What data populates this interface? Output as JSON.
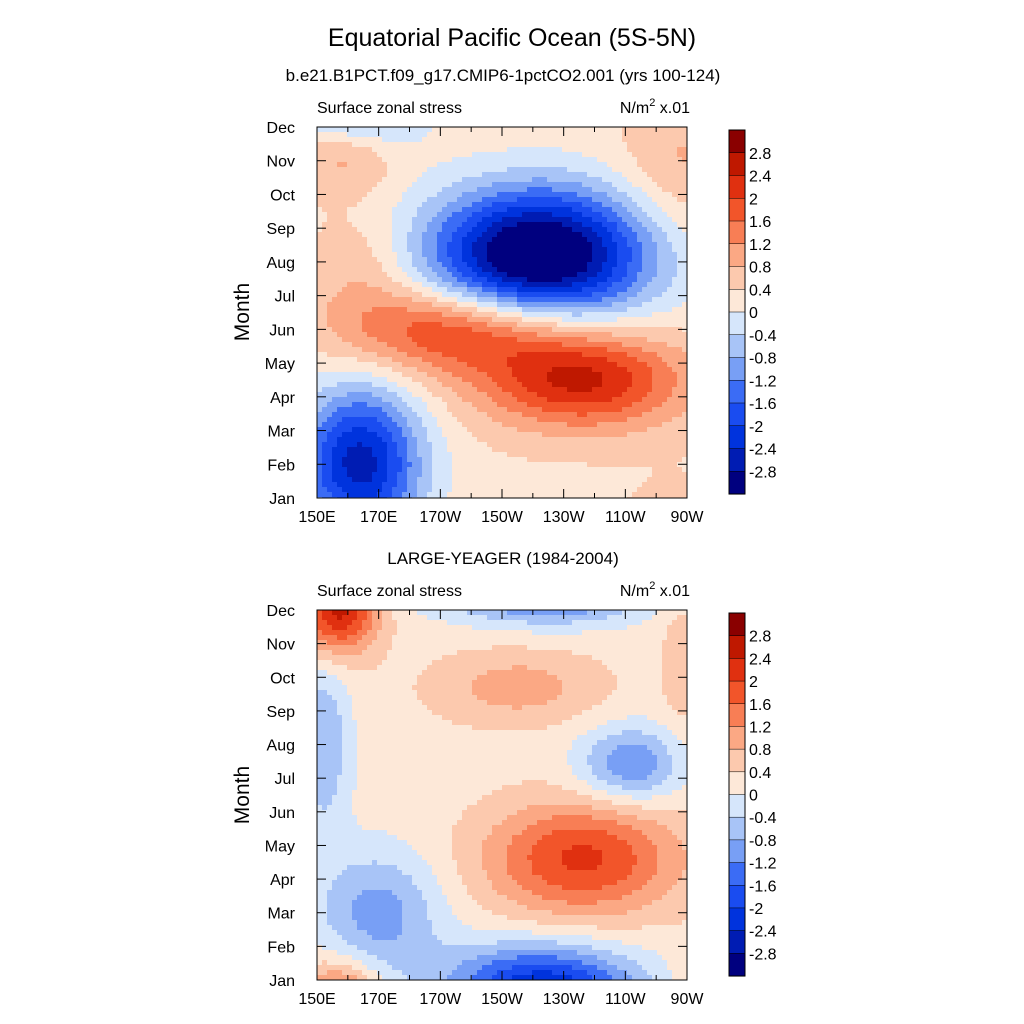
{
  "figure": {
    "title": "Equatorial Pacific Ocean (5S-5N)"
  },
  "colorbar": {
    "levels": [
      -2.8,
      -2.4,
      -2,
      -1.6,
      -1.2,
      -0.8,
      -0.4,
      0,
      0.4,
      0.8,
      1.2,
      1.6,
      2,
      2.4,
      2.8
    ],
    "labels": [
      "2.8",
      "2.4",
      "2",
      "1.6",
      "1.2",
      "0.8",
      "0.4",
      "0",
      "-0.4",
      "-0.8",
      "-1.2",
      "-1.6",
      "-2",
      "-2.4",
      "-2.8"
    ],
    "colors": [
      "#00007f",
      "#001cb3",
      "#0033dd",
      "#1a4cf0",
      "#3b6cf5",
      "#789ff5",
      "#a8c4f7",
      "#d6e6fb",
      "#fde8d8",
      "#fcc9ae",
      "#fba884",
      "#f87e55",
      "#f2552a",
      "#e03010",
      "#bf1800",
      "#8a0000"
    ]
  },
  "chart_data": [
    {
      "type": "heatmap",
      "title": "b.e21.B1PCT.f09_g17.CMIP6-1pctCO2.001 (yrs 100-124)",
      "left_string": "Surface zonal stress",
      "right_string_pre": "N/m",
      "right_string_sup": "2",
      "right_string_post": " x.01",
      "ylabel": "Month",
      "xlabel": "",
      "x_ticks": [
        "150E",
        "170E",
        "170W",
        "150W",
        "130W",
        "110W",
        "90W"
      ],
      "x_values": [
        150,
        170,
        190,
        210,
        230,
        250,
        270
      ],
      "xlim": [
        150,
        270
      ],
      "y_ticks": [
        "Jan",
        "Feb",
        "Mar",
        "Apr",
        "May",
        "Jun",
        "Jul",
        "Aug",
        "Sep",
        "Oct",
        "Nov",
        "Dec"
      ],
      "features": [
        {
          "lon": 164,
          "month": 1.0,
          "amp": -2.9,
          "slon": 14,
          "smon": 1.6
        },
        {
          "lon": 222,
          "month": 7.2,
          "amp": -4.0,
          "slon": 25,
          "smon": 1.4
        },
        {
          "lon": 236,
          "month": 3.5,
          "amp": 2.2,
          "slon": 23,
          "smon": 1.0
        },
        {
          "lon": 196,
          "month": 5.0,
          "amp": 1.9,
          "slon": 26,
          "smon": 0.9
        },
        {
          "lon": 160,
          "month": 10.2,
          "amp": 1.0,
          "slon": 12,
          "smon": 0.8
        },
        {
          "lon": 268,
          "month": 9.8,
          "amp": 0.6,
          "slon": 14,
          "smon": 1.5
        },
        {
          "lon": 165,
          "month": 6.8,
          "amp": 0.5,
          "slon": 12,
          "smon": 1.2
        }
      ],
      "baseline": 0.3
    },
    {
      "type": "heatmap",
      "title": "LARGE-YEAGER (1984-2004)",
      "left_string": "Surface zonal stress",
      "right_string_pre": "N/m",
      "right_string_sup": "2",
      "right_string_post": " x.01",
      "ylabel": "Month",
      "xlabel": "",
      "x_ticks": [
        "150E",
        "170E",
        "170W",
        "150W",
        "130W",
        "110W",
        "90W"
      ],
      "x_values": [
        150,
        170,
        190,
        210,
        230,
        250,
        270
      ],
      "xlim": [
        150,
        270
      ],
      "y_ticks": [
        "Jan",
        "Feb",
        "Mar",
        "Apr",
        "May",
        "Jun",
        "Jul",
        "Aug",
        "Sep",
        "Oct",
        "Nov",
        "Dec"
      ],
      "features": [
        {
          "lon": 157,
          "month": 11.0,
          "amp": 2.4,
          "slon": 9,
          "smon": 0.9
        },
        {
          "lon": 236,
          "month": 3.6,
          "amp": 1.9,
          "slon": 22,
          "smon": 1.2
        },
        {
          "lon": 215,
          "month": 8.7,
          "amp": 0.8,
          "slon": 20,
          "smon": 0.8
        },
        {
          "lon": 252,
          "month": 6.4,
          "amp": -1.4,
          "slon": 12,
          "smon": 0.8
        },
        {
          "lon": 222,
          "month": 0.1,
          "amp": -1.8,
          "slon": 22,
          "smon": 0.8
        },
        {
          "lon": 226,
          "month": 11.5,
          "amp": -1.0,
          "slon": 20,
          "smon": 0.6
        },
        {
          "lon": 170,
          "month": 2.0,
          "amp": -1.2,
          "slon": 14,
          "smon": 1.3
        },
        {
          "lon": 152,
          "month": 7.0,
          "amp": -1.0,
          "slon": 6,
          "smon": 1.8
        },
        {
          "lon": 268,
          "month": 9.5,
          "amp": 0.4,
          "slon": 5,
          "smon": 2
        }
      ],
      "baseline": 0.2
    }
  ]
}
